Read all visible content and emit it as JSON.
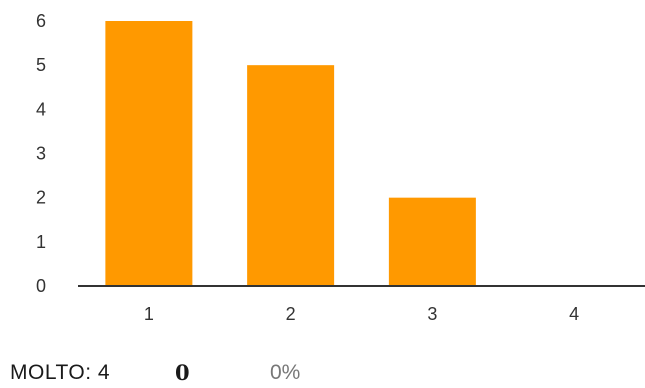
{
  "chart_data": {
    "type": "bar",
    "categories": [
      "1",
      "2",
      "3",
      "4"
    ],
    "values": [
      6,
      5,
      2,
      0
    ],
    "ylim": [
      0,
      6
    ],
    "yticks": [
      "0",
      "1",
      "2",
      "3",
      "4",
      "5",
      "6"
    ],
    "bar_color": "#FF9900",
    "axis_color": "#333333",
    "grid": false,
    "legend": "none"
  },
  "footer": {
    "label": "MOLTO: 4",
    "count": "0",
    "percent": "0%"
  }
}
